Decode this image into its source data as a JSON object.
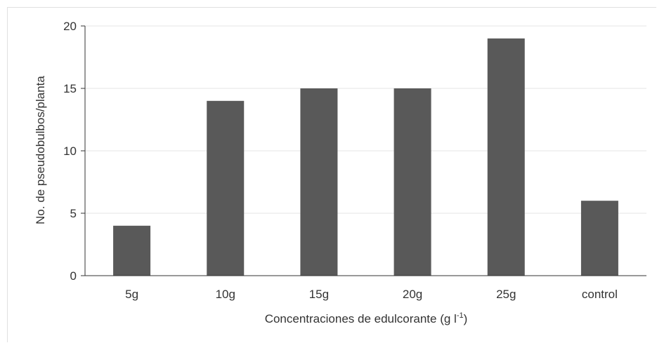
{
  "chart_data": {
    "type": "bar",
    "categories": [
      "5g",
      "10g",
      "15g",
      "20g",
      "25g",
      "control"
    ],
    "values": [
      4,
      14,
      15,
      15,
      19,
      6
    ],
    "xlabel": "Concentraciones  de edulcorante  (g l",
    "xlabel_superscript": "-1",
    "xlabel_suffix": ")",
    "ylabel": "No. de  pseudobulbos/planta",
    "ylim": [
      0,
      20
    ],
    "yticks": [
      0,
      5,
      10,
      15,
      20
    ],
    "grid": true,
    "bar_color": "#595959",
    "grid_color": "#e6e6e6",
    "axis_color": "#333333"
  }
}
